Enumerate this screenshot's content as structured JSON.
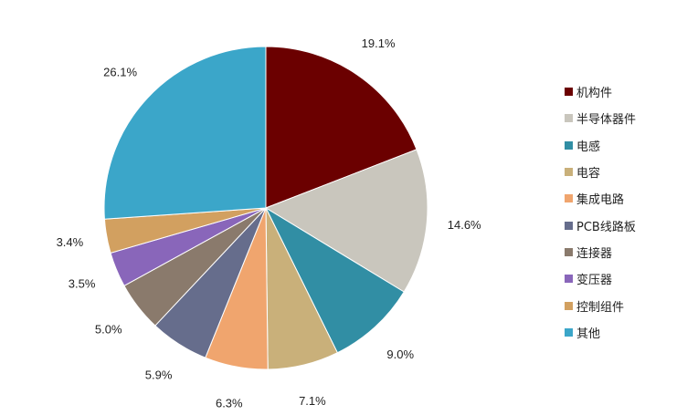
{
  "chart_data": {
    "type": "pie",
    "start_angle_deg": 0,
    "direction": "clockwise",
    "legend_position": "right",
    "slices": [
      {
        "label": "机构件",
        "value": 19.1,
        "display": "19.1%",
        "color": "#6b0000"
      },
      {
        "label": "半导体器件",
        "value": 14.6,
        "display": "14.6%",
        "color": "#c9c6bd"
      },
      {
        "label": "电感",
        "value": 9.0,
        "display": "9.0%",
        "color": "#318ea4"
      },
      {
        "label": "电容",
        "value": 7.1,
        "display": "7.1%",
        "color": "#c9b07a"
      },
      {
        "label": "集成电路",
        "value": 6.3,
        "display": "6.3%",
        "color": "#f0a56e"
      },
      {
        "label": "PCB线路板",
        "value": 5.9,
        "display": "5.9%",
        "color": "#666d8c"
      },
      {
        "label": "连接器",
        "value": 5.0,
        "display": "5.0%",
        "color": "#8a7a6c"
      },
      {
        "label": "变压器",
        "value": 3.5,
        "display": "3.5%",
        "color": "#8966ba"
      },
      {
        "label": "控制组件",
        "value": 3.4,
        "display": "3.4%",
        "color": "#d2a060"
      },
      {
        "label": "其他",
        "value": 26.1,
        "display": "26.1%",
        "color": "#3ba6c9"
      }
    ]
  }
}
